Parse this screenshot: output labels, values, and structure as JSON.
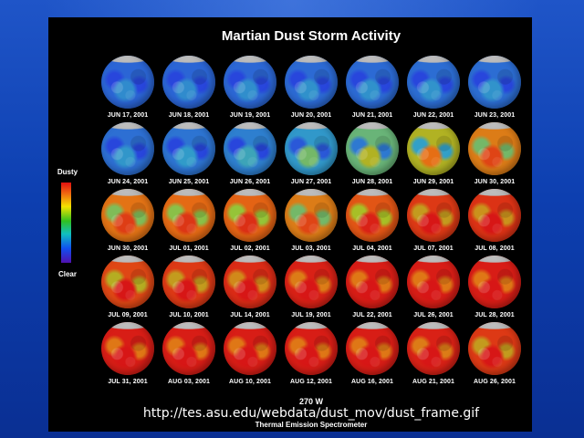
{
  "slide": {
    "title": "Martian Dust Storm Activity",
    "legend": {
      "top_label": "Dusty",
      "bottom_label": "Clear"
    },
    "longitude_label": "270 W",
    "instrument_label": "Thermal Emission Spectrometer",
    "source_url": "http://tes.asu.edu/webdata/dust_mov/dust_frame.gif",
    "colors": {
      "background_blue": "#1445b8",
      "panel_black": "#000000",
      "clear": "#3050d0",
      "dusty": "#d81818"
    }
  },
  "frames": [
    {
      "date": "JUN 17, 2001",
      "dust": 0.12
    },
    {
      "date": "JUN 18, 2001",
      "dust": 0.12
    },
    {
      "date": "JUN 19, 2001",
      "dust": 0.13
    },
    {
      "date": "JUN 20, 2001",
      "dust": 0.14
    },
    {
      "date": "JUN 21, 2001",
      "dust": 0.14
    },
    {
      "date": "JUN 22, 2001",
      "dust": 0.15
    },
    {
      "date": "JUN 23, 2001",
      "dust": 0.15
    },
    {
      "date": "JUN 24, 2001",
      "dust": 0.16
    },
    {
      "date": "JUN 25, 2001",
      "dust": 0.18
    },
    {
      "date": "JUN 26, 2001",
      "dust": 0.22
    },
    {
      "date": "JUN 27, 2001",
      "dust": 0.32
    },
    {
      "date": "JUN 28, 2001",
      "dust": 0.45
    },
    {
      "date": "JUN 29, 2001",
      "dust": 0.6
    },
    {
      "date": "JUN 30, 2001",
      "dust": 0.72
    },
    {
      "date": "JUN 30, 2001",
      "dust": 0.74
    },
    {
      "date": "JUL 01, 2001",
      "dust": 0.76
    },
    {
      "date": "JUL 02, 2001",
      "dust": 0.78
    },
    {
      "date": "JUL 03, 2001",
      "dust": 0.72
    },
    {
      "date": "JUL 04, 2001",
      "dust": 0.82
    },
    {
      "date": "JUL 07, 2001",
      "dust": 0.9
    },
    {
      "date": "JUL 08, 2001",
      "dust": 0.92
    },
    {
      "date": "JUL 09, 2001",
      "dust": 0.86
    },
    {
      "date": "JUL 10, 2001",
      "dust": 0.9
    },
    {
      "date": "JUL 14, 2001",
      "dust": 0.94
    },
    {
      "date": "JUL 19, 2001",
      "dust": 0.97
    },
    {
      "date": "JUL 22, 2001",
      "dust": 0.98
    },
    {
      "date": "JUL 26, 2001",
      "dust": 0.98
    },
    {
      "date": "JUL 28, 2001",
      "dust": 0.98
    },
    {
      "date": "JUL 31, 2001",
      "dust": 0.98
    },
    {
      "date": "AUG 03, 2001",
      "dust": 0.98
    },
    {
      "date": "AUG 10, 2001",
      "dust": 0.98
    },
    {
      "date": "AUG 12, 2001",
      "dust": 0.98
    },
    {
      "date": "AUG 16, 2001",
      "dust": 0.98
    },
    {
      "date": "AUG 21, 2001",
      "dust": 0.97
    },
    {
      "date": "AUG 26, 2001",
      "dust": 0.9
    }
  ]
}
